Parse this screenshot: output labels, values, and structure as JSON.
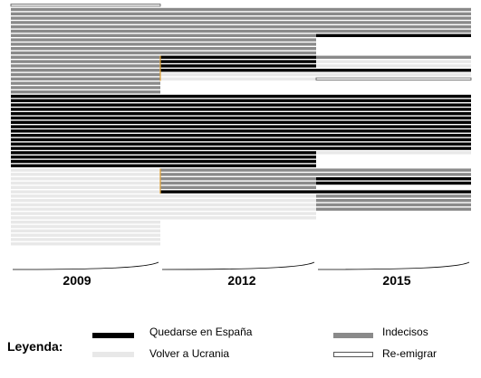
{
  "chart_data": {
    "type": "alluvial",
    "years": [
      "2009",
      "2012",
      "2015"
    ],
    "categories": [
      "Quedarse en España",
      "Volver a Ucrania",
      "Indecisos",
      "Re-emigrar"
    ],
    "colors": {
      "Quedarse en España": "#000000",
      "Volver a Ucrania": "#e8e8e8",
      "Indecisos": "#8a8a8a",
      "Re-emigrar": "#ffffff"
    },
    "outline_color": "#555555",
    "grid": false,
    "legend_position": "bottom",
    "flows": [
      {
        "from": "Re-emigrar",
        "via": "-",
        "to": "-",
        "count": 1
      },
      {
        "from": "Indecisos",
        "via": "Indecisos",
        "to": "Indecisos",
        "count": 6
      },
      {
        "from": "Indecisos",
        "via": "Indecisos",
        "to": "Quedarse en España",
        "count": 1
      },
      {
        "from": "Indecisos",
        "via": "Indecisos",
        "to": "-",
        "count": 4
      },
      {
        "from": "Indecisos",
        "via": "Quedarse en España",
        "to": "Indecisos",
        "count": 1
      },
      {
        "from": "Indecisos",
        "via": "Quedarse en España",
        "to": "Volver a Ucrania",
        "count": 2
      },
      {
        "from": "Indecisos",
        "via": "Quedarse en España",
        "to": "Quedarse en España",
        "count": 1
      },
      {
        "from": "Indecisos",
        "via": "Volver a Ucrania",
        "to": "Volver a Ucrania",
        "count": 1
      },
      {
        "from": "Indecisos",
        "via": "Volver a Ucrania",
        "to": "Re-emigrar",
        "count": 1
      },
      {
        "from": "Indecisos",
        "via": "-",
        "to": "-",
        "count": 3
      },
      {
        "from": "Quedarse en España",
        "via": "Quedarse en España",
        "to": "Quedarse en España",
        "count": 13
      },
      {
        "from": "Quedarse en España",
        "via": "Quedarse en España",
        "to": "Volver a Ucrania",
        "count": 1
      },
      {
        "from": "Quedarse en España",
        "via": "Quedarse en España",
        "to": "-",
        "count": 3
      },
      {
        "from": "Volver a Ucrania",
        "via": "Indecisos",
        "to": "Indecisos",
        "count": 2
      },
      {
        "from": "Volver a Ucrania",
        "via": "Indecisos",
        "to": "Quedarse en España",
        "count": 2
      },
      {
        "from": "Volver a Ucrania",
        "via": "Indecisos",
        "to": "-",
        "count": 1
      },
      {
        "from": "Volver a Ucrania",
        "via": "Quedarse en España",
        "to": "Quedarse en España",
        "count": 1
      },
      {
        "from": "Volver a Ucrania",
        "via": "Volver a Ucrania",
        "to": "Indecisos",
        "count": 4
      },
      {
        "from": "Volver a Ucrania",
        "via": "Volver a Ucrania",
        "to": "-",
        "count": 2
      },
      {
        "from": "Volver a Ucrania",
        "via": "-",
        "to": "-",
        "count": 6
      }
    ]
  },
  "axis": {
    "year_1": "2009",
    "year_2": "2012",
    "year_3": "2015"
  },
  "legend": {
    "title": "Leyenda:",
    "stay": "Quedarse en España",
    "return": "Volver a Ucrania",
    "undecided": "Indecisos",
    "reemigrate": "Re-emigrar"
  }
}
